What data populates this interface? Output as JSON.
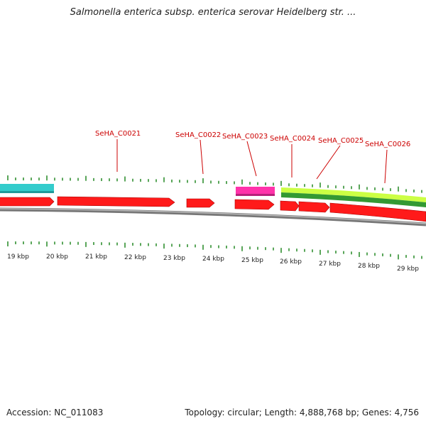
{
  "title": "Salmonella enterica subsp. enterica serovar Heidelberg str. ...",
  "footer": {
    "accession": "Accession: NC_011083",
    "summary": "Topology: circular; Length: 4,888,768 bp; Genes: 4,756"
  },
  "colors": {
    "cds": "#ff1a1a",
    "trna_cyan": "#33cccc",
    "magenta": "#ff33aa",
    "lime": "#ccff44",
    "green": "#339933",
    "backbone": "#888888",
    "tick": "#228822",
    "label": "#cc0000"
  },
  "axis_labels": [
    "19 kbp",
    "20 kbp",
    "21 kbp",
    "22 kbp",
    "23 kbp",
    "24 kbp",
    "25 kbp",
    "26 kbp",
    "27 kbp",
    "28 kbp",
    "29 kbp"
  ],
  "gene_labels": [
    "SeHA_C0021",
    "SeHA_C0022",
    "SeHA_C0023",
    "SeHA_C0024",
    "SeHA_C0025",
    "SeHA_C0026"
  ]
}
